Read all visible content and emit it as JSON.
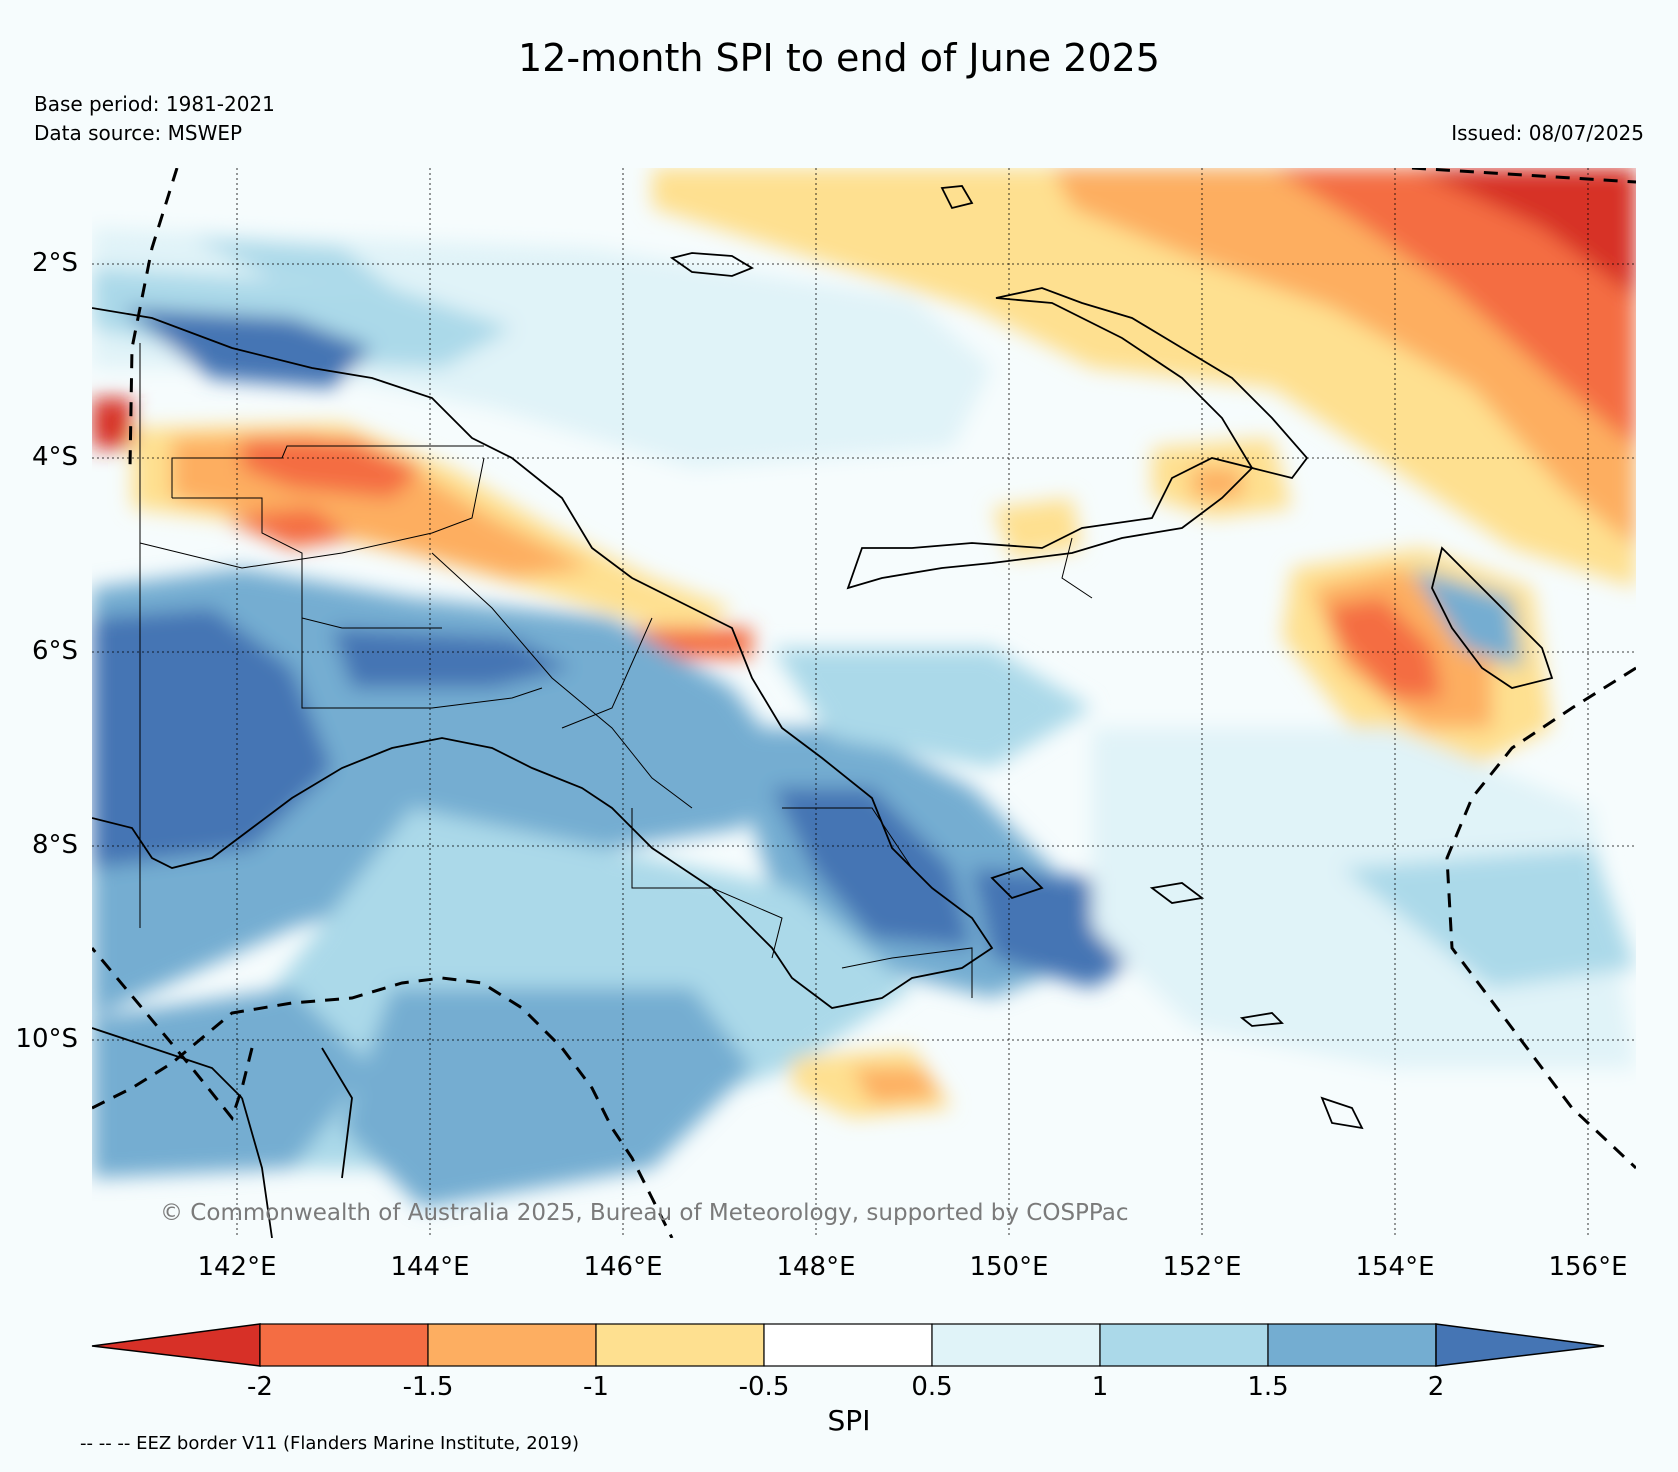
{
  "title": "12-month SPI to end of June 2025",
  "base_period": "Base period: 1981-2021",
  "data_source": "Data source: MSWEP",
  "issued": "Issued: 08/07/2025",
  "copyright": "© Commonwealth of Australia 2025, Bureau of Meteorology, supported by COSPPac",
  "map": {
    "lon_range": [
      140.5,
      156.5
    ],
    "lat_range": [
      -1.0,
      -12.1
    ],
    "lat_ticks": [
      {
        "value": -2,
        "label": "2°S"
      },
      {
        "value": -4,
        "label": "4°S"
      },
      {
        "value": -6,
        "label": "6°S"
      },
      {
        "value": -8,
        "label": "8°S"
      },
      {
        "value": -10,
        "label": "10°S"
      }
    ],
    "lon_ticks": [
      {
        "value": 142,
        "label": "142°E"
      },
      {
        "value": 144,
        "label": "144°E"
      },
      {
        "value": 146,
        "label": "146°E"
      },
      {
        "value": 148,
        "label": "148°E"
      },
      {
        "value": 150,
        "label": "150°E"
      },
      {
        "value": 152,
        "label": "152°E"
      },
      {
        "value": 154,
        "label": "154°E"
      },
      {
        "value": 156,
        "label": "156°E"
      }
    ],
    "gridlines": true
  },
  "colorbar": {
    "label": "SPI",
    "tick_labels": [
      "-2",
      "-1.5",
      "-1",
      "-0.5",
      "0.5",
      "1",
      "1.5",
      "2"
    ],
    "colors": [
      "#d73027",
      "#f46d43",
      "#fdae61",
      "#fee090",
      "#ffffff",
      "#e0f3f8",
      "#abd9e9",
      "#74add1",
      "#4575b4"
    ],
    "extend": "both"
  },
  "eez_note": "-- -- -- EEZ border V11 (Flanders Marine Institute, 2019)"
}
